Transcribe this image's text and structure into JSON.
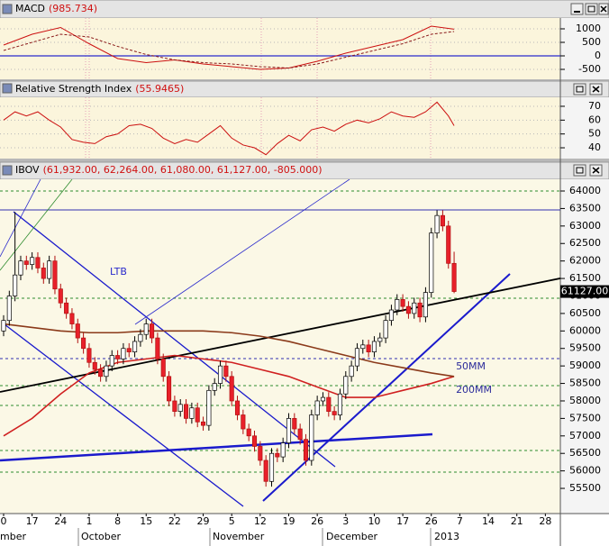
{
  "chart_data": [
    {
      "type": "line",
      "title": "MACD",
      "title_value": "(985.734)",
      "xlim": [
        -0.63,
        97.63
      ],
      "ylim": [
        -867,
        1400
      ],
      "yticks": [
        1000,
        500,
        0,
        -500
      ],
      "grid": true,
      "hline": {
        "value": 0,
        "color": "#2a2acc"
      },
      "series": [
        {
          "color": "#cc1010",
          "dashed": false,
          "x": [
            0,
            5,
            10,
            15,
            20,
            25,
            30,
            35,
            40,
            45,
            50,
            55,
            60,
            65,
            70,
            75,
            79
          ],
          "values": [
            400,
            800,
            1050,
            450,
            -100,
            -250,
            -150,
            -300,
            -400,
            -500,
            -450,
            -200,
            100,
            350,
            600,
            1100,
            985.734
          ]
        },
        {
          "color": "#8a1a1a",
          "dashed": true,
          "x": [
            0,
            5,
            10,
            15,
            20,
            25,
            30,
            35,
            40,
            45,
            50,
            55,
            60,
            65,
            70,
            75,
            79
          ],
          "values": [
            200,
            500,
            800,
            700,
            350,
            50,
            -150,
            -250,
            -300,
            -400,
            -450,
            -300,
            -50,
            200,
            450,
            800,
            900
          ]
        }
      ]
    },
    {
      "type": "line",
      "title": "Relative Strength Index",
      "title_value": "(55.9465)",
      "xlim": [
        -0.63,
        97.63
      ],
      "ylim": [
        32.2,
        76.5
      ],
      "yticks": [
        70,
        60,
        50,
        40
      ],
      "grid": true,
      "series": [
        {
          "color": "#cc1010",
          "dashed": false,
          "x": [
            0,
            2,
            4,
            6,
            8,
            10,
            12,
            14,
            16,
            18,
            20,
            22,
            24,
            26,
            28,
            30,
            32,
            34,
            36,
            38,
            40,
            42,
            44,
            46,
            48,
            50,
            52,
            54,
            56,
            58,
            60,
            62,
            64,
            66,
            68,
            70,
            72,
            74,
            76,
            78,
            79
          ],
          "values": [
            60,
            66,
            63,
            66,
            60,
            55,
            46,
            44,
            43,
            48,
            50,
            56,
            57,
            54,
            47,
            43,
            46,
            44,
            50,
            56,
            47,
            42,
            40,
            35,
            43,
            49,
            45,
            53,
            55,
            52,
            57,
            60,
            58,
            61,
            66,
            63,
            62,
            66,
            73,
            63,
            55.9465
          ]
        }
      ]
    },
    {
      "type": "candlestick",
      "title": "IBOV",
      "title_value": "(61,932.00, 62,264.00, 61,080.00, 61,127.00, -805.000)",
      "xlim": [
        -0.63,
        97.63
      ],
      "ylim": [
        54780,
        64335
      ],
      "yticks": [
        64000,
        63500,
        63000,
        62500,
        62000,
        61500,
        61000,
        60500,
        60000,
        59500,
        59000,
        58500,
        58000,
        57500,
        57000,
        56500,
        56000,
        55500
      ],
      "up_color": "#ffffff",
      "down_color": "#e8202a",
      "categories": [
        "0",
        null,
        null,
        null,
        null,
        "17",
        null,
        null,
        null,
        null,
        "24",
        null,
        null,
        null,
        null,
        "1",
        null,
        null,
        null,
        null,
        "8",
        null,
        null,
        null,
        null,
        "15",
        null,
        null,
        null,
        null,
        "22",
        null,
        null,
        null,
        null,
        "29",
        null,
        null,
        null,
        null,
        "5",
        null,
        null,
        null,
        null,
        "12",
        null,
        null,
        null,
        null,
        "19",
        null,
        null,
        null,
        null,
        "26",
        null,
        null,
        null,
        null,
        "3",
        null,
        null,
        null,
        null,
        "10",
        null,
        null,
        null,
        null,
        "17",
        null,
        null,
        null,
        null,
        "26",
        null,
        null,
        null,
        null,
        "7",
        null,
        null,
        null,
        null,
        "14",
        null,
        null,
        null,
        null,
        "21",
        null,
        null,
        null,
        null,
        "28"
      ],
      "open": [
        60000,
        60300,
        61000,
        61600,
        62000,
        61900,
        62100,
        61800,
        61500,
        62000,
        61200,
        60800,
        60500,
        60200,
        59800,
        59500,
        59100,
        58900,
        58700,
        59000,
        59300,
        59200,
        59500,
        59400,
        59700,
        59900,
        60200,
        59800,
        59200,
        58700,
        58000,
        57700,
        57900,
        57500,
        57800,
        57400,
        57300,
        58300,
        58500,
        59000,
        58700,
        58000,
        57600,
        57200,
        57000,
        56700,
        56300,
        55700,
        56500,
        56400,
        56800,
        57500,
        57200,
        56900,
        56300,
        57600,
        58000,
        58100,
        57700,
        57600,
        58200,
        58700,
        59000,
        59500,
        59600,
        59400,
        59700,
        59800,
        60300,
        60600,
        60900,
        60700,
        60500,
        60800,
        60400,
        61100,
        62800,
        63300,
        63000,
        61932,
        null,
        null,
        null,
        null,
        null,
        null,
        null,
        null,
        null,
        null,
        null,
        null,
        null,
        null,
        null,
        null
      ],
      "high": [
        60450,
        61150,
        63400,
        62150,
        62150,
        62250,
        62250,
        61950,
        62150,
        62150,
        61350,
        60950,
        60650,
        60350,
        59950,
        59650,
        59250,
        59050,
        59150,
        59450,
        59450,
        59650,
        59650,
        59850,
        60050,
        60350,
        60350,
        59950,
        59350,
        58850,
        58150,
        58050,
        58050,
        57950,
        57950,
        57550,
        58450,
        58650,
        59150,
        59150,
        58850,
        58150,
        57750,
        57350,
        57150,
        56850,
        56450,
        56650,
        56650,
        56950,
        57650,
        57650,
        57350,
        57050,
        57750,
        58150,
        58250,
        58250,
        57850,
        58350,
        58850,
        59150,
        59650,
        59750,
        59750,
        59850,
        59950,
        60450,
        60750,
        61050,
        61050,
        60850,
        60950,
        60950,
        61250,
        62950,
        63450,
        63450,
        63150,
        62264,
        null,
        null,
        null,
        null,
        null,
        null,
        null,
        null,
        null,
        null,
        null,
        null,
        null,
        null,
        null,
        null
      ],
      "low": [
        59850,
        60150,
        60850,
        61450,
        61750,
        61750,
        61650,
        61350,
        61350,
        61050,
        60650,
        60350,
        60050,
        59650,
        59350,
        58950,
        58750,
        58550,
        58550,
        58850,
        59050,
        59050,
        59250,
        59250,
        59550,
        59750,
        59650,
        59050,
        58550,
        57850,
        57550,
        57550,
        57350,
        57350,
        57250,
        57150,
        57150,
        58150,
        58350,
        58550,
        57850,
        57450,
        57050,
        56850,
        56550,
        56150,
        55550,
        55550,
        56250,
        56250,
        56650,
        57050,
        56750,
        56150,
        56150,
        57450,
        57850,
        57550,
        57450,
        57450,
        58050,
        58550,
        58850,
        59350,
        59250,
        59250,
        59550,
        59650,
        60150,
        60450,
        60550,
        60350,
        60350,
        60250,
        60250,
        60950,
        62650,
        62850,
        61782,
        61080,
        null,
        null,
        null,
        null,
        null,
        null,
        null,
        null,
        null,
        null,
        null,
        null,
        null,
        null,
        null,
        null
      ],
      "close": [
        60300,
        61000,
        61600,
        62000,
        61900,
        62100,
        61800,
        61500,
        62000,
        61200,
        60800,
        60500,
        60200,
        59800,
        59500,
        59100,
        58900,
        58700,
        59000,
        59300,
        59200,
        59500,
        59400,
        59700,
        59900,
        60200,
        59800,
        59200,
        58700,
        58000,
        57700,
        57900,
        57500,
        57800,
        57400,
        57300,
        58300,
        58500,
        59000,
        58700,
        58000,
        57600,
        57200,
        57000,
        56700,
        56300,
        55700,
        56500,
        56400,
        56800,
        57500,
        57200,
        56900,
        56300,
        57600,
        58000,
        58100,
        57700,
        57600,
        58200,
        58700,
        59000,
        59500,
        59600,
        59400,
        59700,
        59800,
        60300,
        60600,
        60900,
        60700,
        60500,
        60800,
        60400,
        61100,
        62800,
        63300,
        63000,
        61932,
        61127,
        null,
        null,
        null,
        null,
        null,
        null,
        null,
        null,
        null,
        null,
        null,
        null,
        null,
        null,
        null,
        null
      ],
      "last_price_label": "61127.00",
      "overlays": [
        {
          "name": "50MM",
          "color": "#d02020",
          "x": [
            0,
            5,
            10,
            15,
            20,
            25,
            30,
            35,
            40,
            45,
            50,
            55,
            60,
            65,
            70,
            75,
            79
          ],
          "values": [
            57000,
            57500,
            58200,
            58800,
            59100,
            59200,
            59300,
            59200,
            59100,
            58900,
            58700,
            58400,
            58100,
            58100,
            58300,
            58500,
            58700
          ]
        },
        {
          "name": "200MM",
          "color": "#8b3a1a",
          "x": [
            0,
            5,
            10,
            15,
            20,
            25,
            30,
            35,
            40,
            45,
            50,
            55,
            60,
            65,
            70,
            75,
            79
          ],
          "values": [
            60200,
            60100,
            60000,
            59950,
            59950,
            60000,
            60000,
            60000,
            59950,
            59850,
            59700,
            59500,
            59300,
            59100,
            58950,
            58800,
            58700
          ]
        }
      ],
      "annotations": [
        "LTB"
      ],
      "months": [
        "mber",
        "October",
        "November",
        "December",
        "2013"
      ]
    }
  ]
}
